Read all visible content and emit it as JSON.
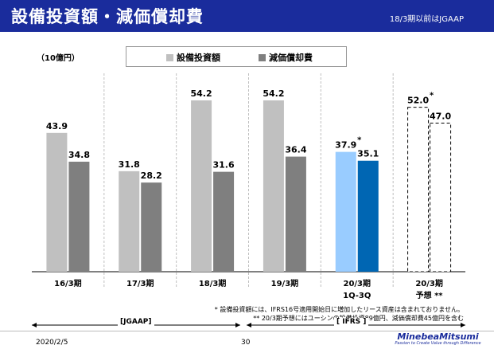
{
  "header": {
    "title": "設備投資額・減価償却費",
    "note": "18/3期以前はJGAAP"
  },
  "unit_label": "（10億円）",
  "colors": {
    "header_bg": "#1a2c9c",
    "capex": "#c0c0c0",
    "depreciation": "#7f7f7f",
    "capex_current": "#99ccff",
    "depreciation_current": "#0066b3"
  },
  "chart_data": {
    "type": "bar",
    "categories": [
      {
        "label": "16/3期",
        "sublabel": ""
      },
      {
        "label": "17/3期",
        "sublabel": ""
      },
      {
        "label": "18/3期",
        "sublabel": ""
      },
      {
        "label": "19/3期",
        "sublabel": ""
      },
      {
        "label": "20/3期",
        "sublabel": "1Q-3Q"
      },
      {
        "label": "20/3期",
        "sublabel": "予想 **"
      }
    ],
    "series": [
      {
        "name": "設備投資額",
        "values": [
          43.9,
          31.8,
          54.2,
          54.2,
          37.9,
          52.0
        ],
        "labels": [
          "43.9",
          "31.8",
          "54.2",
          "54.2",
          "37.9",
          "52.0"
        ],
        "markers": [
          "",
          "",
          "",
          "",
          "*",
          "*"
        ]
      },
      {
        "name": "減価償却費",
        "values": [
          34.8,
          28.2,
          31.6,
          36.4,
          35.1,
          47.0
        ],
        "labels": [
          "34.8",
          "28.2",
          "31.6",
          "36.4",
          "35.1",
          "47.0"
        ],
        "markers": [
          "",
          "",
          "",
          "",
          "",
          ""
        ]
      }
    ],
    "ylim": [
      0,
      62
    ],
    "forecast_index": 5,
    "current_index": 4
  },
  "footnotes": [
    "* 設備投資額には、IFRS16号適用開始日に増加したリース資産は含まれておりません。",
    "** 20/3期予想にはユーシンの設備投資89億円、減価償却費45億円を含む"
  ],
  "periods": {
    "jgaap": "[JGAAP]",
    "ifrs": "[ IFRS ]"
  },
  "footer": {
    "date": "2020/2/5",
    "page": "30",
    "logo": "MinebeaMitsumi",
    "tagline": "Passion to Create Value through Difference"
  }
}
